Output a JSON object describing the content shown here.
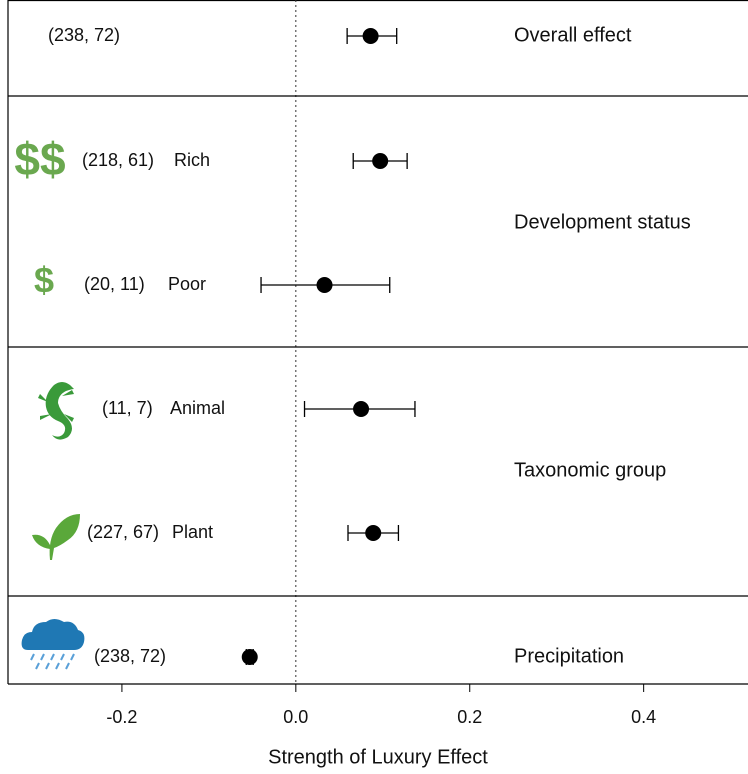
{
  "chart_data": {
    "type": "forest",
    "xlabel": "Strength of Luxury Effect",
    "xlim": [
      -0.331,
      0.52
    ],
    "xticks": [
      -0.2,
      {
        "value": 0,
        "label": "0.0"
      },
      0.2,
      0.4
    ],
    "reference_line": 0,
    "color": "#000000",
    "groups": [
      {
        "label": "Overall effect",
        "rows": [
          {
            "counts": "(238, 72)",
            "estimate": 0.086,
            "lower": 0.059,
            "upper": 0.116
          }
        ]
      },
      {
        "label": "Development status",
        "rows": [
          {
            "icon": "$$",
            "counts": "(218, 61)",
            "label": "Rich",
            "estimate": 0.097,
            "lower": 0.066,
            "upper": 0.128
          },
          {
            "icon": "$",
            "counts": "(20, 11)",
            "label": "Poor",
            "estimate": 0.033,
            "lower": -0.04,
            "upper": 0.108
          }
        ]
      },
      {
        "label": "Taxonomic group",
        "rows": [
          {
            "counts": "(11, 7)",
            "label": "Animal",
            "estimate": 0.075,
            "lower": 0.01,
            "upper": 0.137
          },
          {
            "counts": "(227, 67)",
            "label": "Plant",
            "estimate": 0.089,
            "lower": 0.06,
            "upper": 0.118
          }
        ]
      },
      {
        "label": "Precipitation",
        "rows": [
          {
            "counts": "(238, 72)",
            "estimate": -0.053,
            "lower": -0.057,
            "upper": -0.049
          }
        ]
      }
    ]
  }
}
